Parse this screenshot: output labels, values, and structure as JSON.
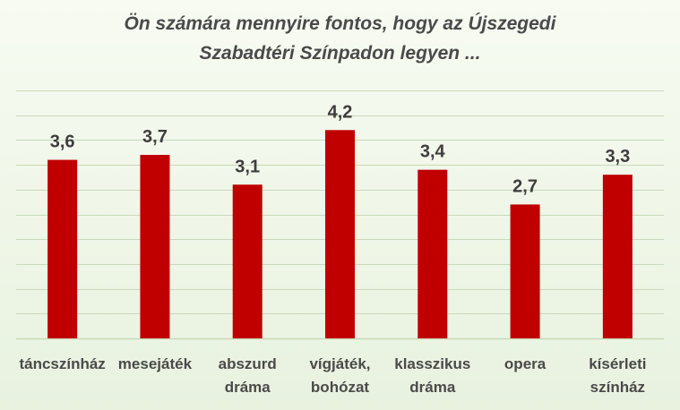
{
  "chart_data": {
    "type": "bar",
    "title_lines": [
      "Ön számára mennyire fontos, hogy az Újszegedi",
      "Szabadtéri Színpadon legyen ..."
    ],
    "categories": [
      [
        "táncszínház"
      ],
      [
        "mesejáték"
      ],
      [
        "abszurd",
        "dráma"
      ],
      [
        "vígjáték,",
        "bohózat"
      ],
      [
        "klasszikus",
        "dráma"
      ],
      [
        "opera"
      ],
      [
        "kísérleti",
        "színház"
      ]
    ],
    "values": [
      3.6,
      3.7,
      3.1,
      4.2,
      3.4,
      2.7,
      3.3
    ],
    "value_labels": [
      "3,6",
      "3,7",
      "3,1",
      "4,2",
      "3,4",
      "2,7",
      "3,3"
    ],
    "ylim": [
      0,
      5
    ],
    "grid": true,
    "bar_color": "#c00000",
    "grid_color": "#c9d9bc"
  }
}
